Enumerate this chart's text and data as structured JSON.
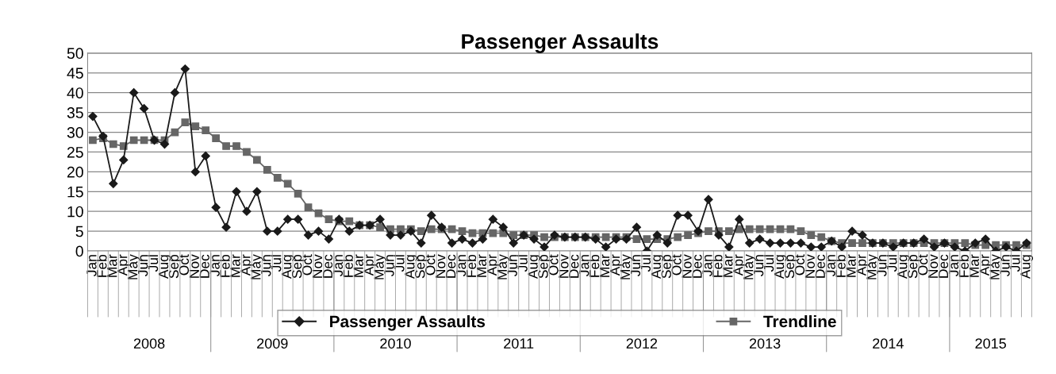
{
  "chart_data": {
    "type": "line",
    "title": "Passenger Assaults",
    "categories": [
      "Jan",
      "Feb",
      "Mar",
      "Apr",
      "May",
      "Jun",
      "Jul",
      "Aug",
      "Sep",
      "Oct",
      "Nov",
      "Dec",
      "Jan",
      "Feb",
      "Mar",
      "Apr",
      "May",
      "Jun",
      "Jul",
      "Aug",
      "Sep",
      "Oct",
      "Nov",
      "Dec",
      "Jan",
      "Feb",
      "Mar",
      "Apr",
      "May",
      "Jun",
      "Jul",
      "Aug",
      "Sep",
      "Oct",
      "Nov",
      "Dec",
      "Jan",
      "Feb",
      "Mar",
      "Apr",
      "May",
      "Jun",
      "Jul",
      "Aug",
      "Sep",
      "Oct",
      "Nov",
      "Dec",
      "Jan",
      "Feb",
      "Mar",
      "Apr",
      "May",
      "Jun",
      "Jul",
      "Aug",
      "Sep",
      "Oct",
      "Nov",
      "Dec",
      "Jan",
      "Feb",
      "Mar",
      "Apr",
      "May",
      "Jun",
      "Jul",
      "Aug",
      "Sep",
      "Oct",
      "Nov",
      "Dec",
      "Jan",
      "Feb",
      "Mar",
      "Apr",
      "May",
      "Jun",
      "Jul",
      "Aug",
      "Sep",
      "Oct",
      "Nov",
      "Dec",
      "Jan",
      "Feb",
      "Mar",
      "Apr",
      "May",
      "Jun",
      "Jul",
      "Aug"
    ],
    "series": [
      {
        "name": "Passenger Assaults",
        "color": "#1a1a1a",
        "marker": "diamond",
        "values": [
          34,
          29,
          17,
          23,
          40,
          36,
          28,
          27,
          40,
          46,
          20,
          24,
          11,
          6,
          15,
          10,
          15,
          5,
          5,
          8,
          8,
          4,
          5,
          3,
          8,
          5,
          6.5,
          6.5,
          8,
          4,
          4,
          5,
          2,
          9,
          6,
          2,
          3,
          2,
          3,
          8,
          6,
          2,
          4,
          3,
          1,
          4,
          3.5,
          3.5,
          3.5,
          3,
          1,
          3,
          3,
          6,
          0,
          4,
          2,
          9,
          9,
          5,
          13,
          4,
          1,
          8,
          2,
          3,
          2,
          2,
          2,
          2,
          1,
          1,
          2.5,
          1,
          5,
          4,
          2,
          2,
          1,
          2,
          2,
          3,
          1,
          2,
          1,
          0,
          2,
          3,
          0,
          1,
          0,
          2
        ]
      },
      {
        "name": "Trendline",
        "color": "#666666",
        "marker": "square",
        "values": [
          28,
          28.5,
          27,
          26.5,
          28,
          28,
          28,
          28,
          30,
          32.5,
          31.5,
          30.5,
          28.5,
          26.5,
          26.5,
          25,
          23,
          20.5,
          18.5,
          17,
          14.5,
          11,
          9.5,
          8,
          7.5,
          7.5,
          6.5,
          6.5,
          6,
          5.5,
          5.5,
          5.5,
          5,
          5.5,
          5.5,
          5.5,
          5,
          4.5,
          4.5,
          4.5,
          4.5,
          4,
          4,
          4,
          3.5,
          3.5,
          3.5,
          3.5,
          3.5,
          3.5,
          3.5,
          3.5,
          3.5,
          3,
          3,
          3,
          3,
          3.5,
          4,
          4.5,
          5,
          5,
          5,
          5.5,
          5.5,
          5.5,
          5.5,
          5.5,
          5.5,
          5,
          4,
          3.5,
          2.5,
          2,
          2,
          2,
          2,
          2,
          2,
          2,
          2,
          2,
          2,
          2,
          2,
          2,
          1.5,
          1.5,
          1.5,
          1.5,
          1.5,
          1.5
        ]
      }
    ],
    "ylim": [
      0,
      50
    ],
    "yticks": [
      0,
      5,
      10,
      15,
      20,
      25,
      30,
      35,
      40,
      45,
      50
    ],
    "grid": "y",
    "legend": "bottom",
    "line_style": "solid",
    "annotations": [
      "2008",
      "2009",
      "2010",
      "2011",
      "2012",
      "2013",
      "2014",
      "2015"
    ]
  }
}
